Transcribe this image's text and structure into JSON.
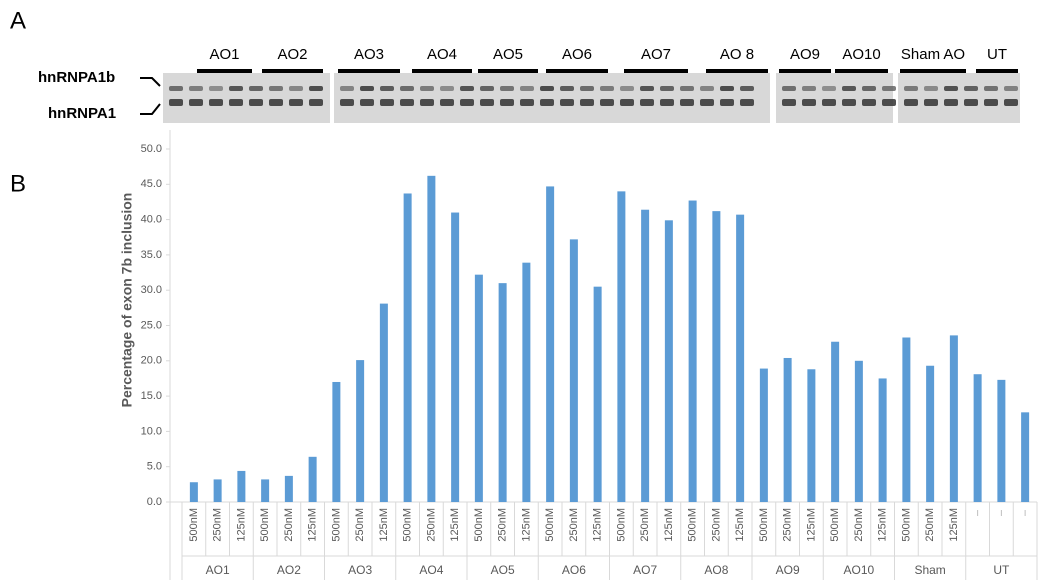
{
  "figure": {
    "panel_a": "A",
    "panel_b": "B",
    "band_labels": [
      "hnRNPA1b",
      "hnRNPA1"
    ],
    "lane_labels": [
      "AO1",
      "AO2",
      "AO3",
      "AO4",
      "AO5",
      "AO6",
      "AO7",
      "AO 8",
      "AO9",
      "AO10",
      "Sham AO",
      "UT"
    ]
  },
  "chart_data": {
    "type": "bar",
    "y_label": "Percentage of exon 7b inclusion",
    "categories": [
      "500nM",
      "250nM",
      "125nM",
      "500nM",
      "250nM",
      "125nM",
      "500nM",
      "250nM",
      "125nM",
      "500nM",
      "250nM",
      "125nM",
      "500nM",
      "250nM",
      "125nM",
      "500nM",
      "250nM",
      "125nM",
      "500nM",
      "250nM",
      "125nM",
      "500nM",
      "250nM",
      "125nM",
      "500nM",
      "250nM",
      "125nM",
      "500nM",
      "250nM",
      "125nM",
      "500nM",
      "250nM",
      "125nM",
      null,
      null,
      null
    ],
    "groups": [
      "AO1",
      "AO2",
      "AO3",
      "AO4",
      "AO5",
      "AO6",
      "AO7",
      "AO8",
      "AO9",
      "AO10",
      "Sham",
      "UT"
    ],
    "values": [
      2.8,
      3.2,
      4.4,
      3.2,
      3.7,
      6.4,
      17.0,
      20.1,
      28.1,
      43.7,
      46.2,
      41.0,
      32.2,
      31.0,
      33.9,
      44.7,
      37.2,
      30.5,
      44.0,
      41.4,
      39.9,
      42.7,
      41.2,
      40.7,
      18.9,
      20.4,
      18.8,
      22.7,
      20.0,
      17.5,
      23.3,
      19.3,
      23.6,
      18.1,
      17.3,
      12.7
    ],
    "color": "#5b9bd5",
    "ylim": [
      0,
      50
    ],
    "yticks": [
      {
        "value": 0,
        "label": "0.0"
      },
      {
        "value": 5,
        "label": "5.0"
      },
      {
        "value": 10,
        "label": "10.0"
      },
      {
        "value": 15,
        "label": "15.0"
      },
      {
        "value": 20,
        "label": "20.0"
      },
      {
        "value": 25,
        "label": "25.0"
      },
      {
        "value": 30,
        "label": "30.0"
      },
      {
        "value": 35,
        "label": "35.0"
      },
      {
        "value": 40,
        "label": "40.0"
      },
      {
        "value": 45,
        "label": "45.0"
      },
      {
        "value": 50,
        "label": "50.0"
      }
    ],
    "grid": false
  }
}
